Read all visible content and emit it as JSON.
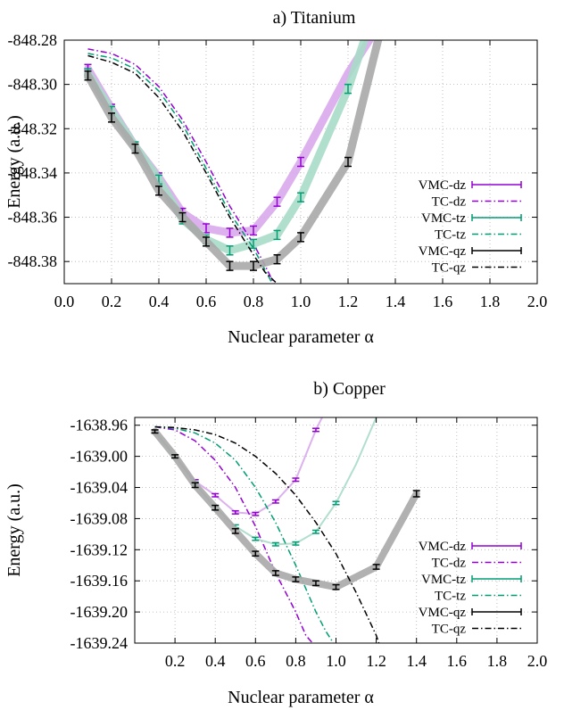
{
  "chart_data": [
    {
      "type": "line",
      "title": "a) Titanium",
      "xlabel": "Nuclear parameter α",
      "ylabel": "Energy (a.u.)",
      "xlim": [
        0.0,
        2.0
      ],
      "ylim": [
        -848.39,
        -848.28
      ],
      "xticks": [
        "0.0",
        "0.2",
        "0.4",
        "0.6",
        "0.8",
        "1.0",
        "1.2",
        "1.4",
        "1.6",
        "1.8",
        "2.0"
      ],
      "xtick_values": [
        0.0,
        0.2,
        0.4,
        0.6,
        0.8,
        1.0,
        1.2,
        1.4,
        1.6,
        1.8,
        2.0
      ],
      "yticks": [
        "-848.28",
        "-848.30",
        "-848.32",
        "-848.34",
        "-848.36",
        "-848.38"
      ],
      "ytick_values": [
        -848.28,
        -848.3,
        -848.32,
        -848.34,
        -848.36,
        -848.38
      ],
      "grid": true,
      "legend_position": "right",
      "series": [
        {
          "name": "VMC-dz",
          "style": "vmc",
          "color": "#9400d3",
          "band": "#d8a8ec",
          "x": [
            0.1,
            0.2,
            0.3,
            0.4,
            0.5,
            0.6,
            0.7,
            0.8,
            0.9,
            1.0,
            1.2,
            1.35
          ],
          "y": [
            -848.293,
            -848.311,
            -848.328,
            -848.342,
            -848.358,
            -848.365,
            -848.367,
            -848.366,
            -848.353,
            -848.335,
            -848.295,
            -848.27
          ],
          "err": [
            0.002,
            0.002,
            0.002,
            0.002,
            0.002,
            0.002,
            0.002,
            0.002,
            0.002,
            0.002,
            0.002,
            0.0
          ],
          "bars": [
            1,
            1,
            1,
            1,
            1,
            1,
            1,
            1,
            1,
            1,
            0,
            0
          ]
        },
        {
          "name": "TC-dz",
          "style": "tc",
          "color": "#9400d3",
          "x": [
            0.1,
            0.2,
            0.3,
            0.4,
            0.5,
            0.6,
            0.7,
            0.8,
            0.85,
            0.9
          ],
          "y": [
            -848.284,
            -848.286,
            -848.291,
            -848.301,
            -848.316,
            -848.335,
            -848.355,
            -848.372,
            -848.382,
            -848.393
          ]
        },
        {
          "name": "VMC-tz",
          "style": "vmc",
          "color": "#009e73",
          "band": "#a8dcc8",
          "x": [
            0.1,
            0.2,
            0.3,
            0.4,
            0.5,
            0.6,
            0.7,
            0.8,
            0.9,
            1.0,
            1.2,
            1.3
          ],
          "y": [
            -848.295,
            -848.312,
            -848.328,
            -848.343,
            -848.361,
            -848.37,
            -848.375,
            -848.372,
            -848.368,
            -848.351,
            -848.302,
            -848.27
          ],
          "err": [
            0.002,
            0.002,
            0.002,
            0.002,
            0.002,
            0.002,
            0.002,
            0.002,
            0.002,
            0.002,
            0.002,
            0.0
          ],
          "bars": [
            1,
            1,
            1,
            1,
            1,
            1,
            1,
            1,
            1,
            1,
            1,
            0
          ]
        },
        {
          "name": "TC-tz",
          "style": "tc",
          "color": "#009e73",
          "x": [
            0.1,
            0.2,
            0.3,
            0.4,
            0.5,
            0.6,
            0.7,
            0.8,
            0.85,
            0.9
          ],
          "y": [
            -848.286,
            -848.288,
            -848.293,
            -848.303,
            -848.318,
            -848.338,
            -848.358,
            -848.374,
            -848.384,
            -848.394
          ]
        },
        {
          "name": "VMC-qz",
          "style": "vmc",
          "color": "#000000",
          "band": "#a8a8a8",
          "x": [
            0.1,
            0.2,
            0.3,
            0.4,
            0.5,
            0.6,
            0.7,
            0.8,
            0.9,
            1.0,
            1.2,
            1.35
          ],
          "y": [
            -848.296,
            -848.315,
            -848.329,
            -848.348,
            -848.36,
            -848.371,
            -848.382,
            -848.382,
            -848.379,
            -848.369,
            -848.335,
            -848.27
          ],
          "err": [
            0.002,
            0.002,
            0.002,
            0.002,
            0.002,
            0.002,
            0.002,
            0.002,
            0.002,
            0.002,
            0.002,
            0.0
          ],
          "bars": [
            1,
            1,
            1,
            1,
            1,
            1,
            1,
            1,
            1,
            1,
            1,
            0
          ]
        },
        {
          "name": "TC-qz",
          "style": "tc",
          "color": "#000000",
          "x": [
            0.1,
            0.2,
            0.3,
            0.4,
            0.5,
            0.6,
            0.7,
            0.8,
            0.85,
            0.9,
            0.93
          ],
          "y": [
            -848.287,
            -848.29,
            -848.295,
            -848.306,
            -848.321,
            -848.34,
            -848.36,
            -848.377,
            -848.385,
            -848.39,
            -848.394
          ]
        }
      ]
    },
    {
      "type": "line",
      "title": "b) Copper",
      "xlabel": "Nuclear parameter α",
      "ylabel": "Energy (a.u.)",
      "xlim": [
        0.0,
        2.0
      ],
      "ylim": [
        -1639.24,
        -1638.95
      ],
      "xticks": [
        "0.2",
        "0.4",
        "0.6",
        "0.8",
        "1.0",
        "1.2",
        "1.4",
        "1.6",
        "1.8",
        "2.0"
      ],
      "xtick_values": [
        0.2,
        0.4,
        0.6,
        0.8,
        1.0,
        1.2,
        1.4,
        1.6,
        1.8,
        2.0
      ],
      "yticks": [
        "-1638.96",
        "-1639.00",
        "-1639.04",
        "-1639.08",
        "-1639.12",
        "-1639.16",
        "-1639.20",
        "-1639.24"
      ],
      "ytick_values": [
        -1638.96,
        -1639.0,
        -1639.04,
        -1639.08,
        -1639.12,
        -1639.16,
        -1639.2,
        -1639.24
      ],
      "grid": true,
      "legend_position": "right",
      "series": [
        {
          "name": "VMC-dz",
          "style": "vmc",
          "color": "#9400d3",
          "band": "#d8a8ec",
          "band_width": 2,
          "x": [
            0.1,
            0.2,
            0.3,
            0.4,
            0.5,
            0.6,
            0.7,
            0.8,
            0.9,
            0.95
          ],
          "y": [
            -1638.968,
            -1639.0,
            -1639.032,
            -1639.05,
            -1639.072,
            -1639.074,
            -1639.058,
            -1639.03,
            -1638.966,
            -1638.94
          ],
          "err": [
            0.002,
            0.002,
            0.002,
            0.002,
            0.002,
            0.002,
            0.002,
            0.002,
            0.002,
            0.0
          ],
          "bars": [
            1,
            1,
            1,
            1,
            1,
            1,
            1,
            1,
            1,
            0
          ]
        },
        {
          "name": "TC-dz",
          "style": "tc",
          "color": "#9400d3",
          "x": [
            0.1,
            0.2,
            0.3,
            0.4,
            0.5,
            0.6,
            0.7,
            0.8,
            0.85,
            0.9
          ],
          "y": [
            -1638.962,
            -1638.966,
            -1638.98,
            -1639.005,
            -1639.04,
            -1639.09,
            -1639.15,
            -1639.2,
            -1639.23,
            -1639.245
          ]
        },
        {
          "name": "VMC-tz",
          "style": "vmc",
          "color": "#009e73",
          "band": "#a8dcc8",
          "band_width": 2,
          "x": [
            0.1,
            0.2,
            0.3,
            0.4,
            0.5,
            0.6,
            0.7,
            0.8,
            0.9,
            1.0,
            1.1,
            1.2
          ],
          "y": [
            -1638.968,
            -1639.0,
            -1639.035,
            -1639.066,
            -1639.09,
            -1639.106,
            -1639.113,
            -1639.112,
            -1639.097,
            -1639.06,
            -1639.01,
            -1638.95
          ],
          "err": [
            0.002,
            0.002,
            0.002,
            0.002,
            0.002,
            0.002,
            0.002,
            0.002,
            0.002,
            0.002,
            0.0,
            0.0
          ],
          "bars": [
            1,
            1,
            1,
            1,
            1,
            1,
            1,
            1,
            1,
            1,
            0,
            0
          ]
        },
        {
          "name": "TC-tz",
          "style": "tc",
          "color": "#009e73",
          "x": [
            0.1,
            0.2,
            0.3,
            0.4,
            0.5,
            0.6,
            0.7,
            0.8,
            0.9,
            0.95,
            1.0
          ],
          "y": [
            -1638.962,
            -1638.964,
            -1638.97,
            -1638.983,
            -1639.005,
            -1639.04,
            -1639.085,
            -1639.14,
            -1639.2,
            -1639.225,
            -1639.245
          ]
        },
        {
          "name": "VMC-qz",
          "style": "vmc",
          "color": "#000000",
          "band": "#a8a8a8",
          "band_width": 8,
          "x": [
            0.1,
            0.2,
            0.3,
            0.4,
            0.5,
            0.6,
            0.7,
            0.8,
            0.9,
            1.0,
            1.2,
            1.4
          ],
          "y": [
            -1638.968,
            -1639.0,
            -1639.037,
            -1639.066,
            -1639.096,
            -1639.125,
            -1639.15,
            -1639.158,
            -1639.163,
            -1639.168,
            -1639.142,
            -1639.048
          ],
          "err": [
            0.002,
            0.002,
            0.003,
            0.003,
            0.003,
            0.003,
            0.003,
            0.003,
            0.003,
            0.003,
            0.003,
            0.004
          ],
          "bars": [
            1,
            1,
            1,
            1,
            1,
            1,
            1,
            1,
            1,
            1,
            1,
            1
          ]
        },
        {
          "name": "TC-qz",
          "style": "tc",
          "color": "#000000",
          "x": [
            0.1,
            0.2,
            0.3,
            0.4,
            0.5,
            0.6,
            0.7,
            0.8,
            0.9,
            1.0,
            1.1,
            1.2,
            1.22
          ],
          "y": [
            -1638.962,
            -1638.963,
            -1638.966,
            -1638.972,
            -1638.983,
            -1639.0,
            -1639.022,
            -1639.05,
            -1639.085,
            -1639.125,
            -1639.175,
            -1639.23,
            -1639.245
          ]
        }
      ]
    }
  ]
}
